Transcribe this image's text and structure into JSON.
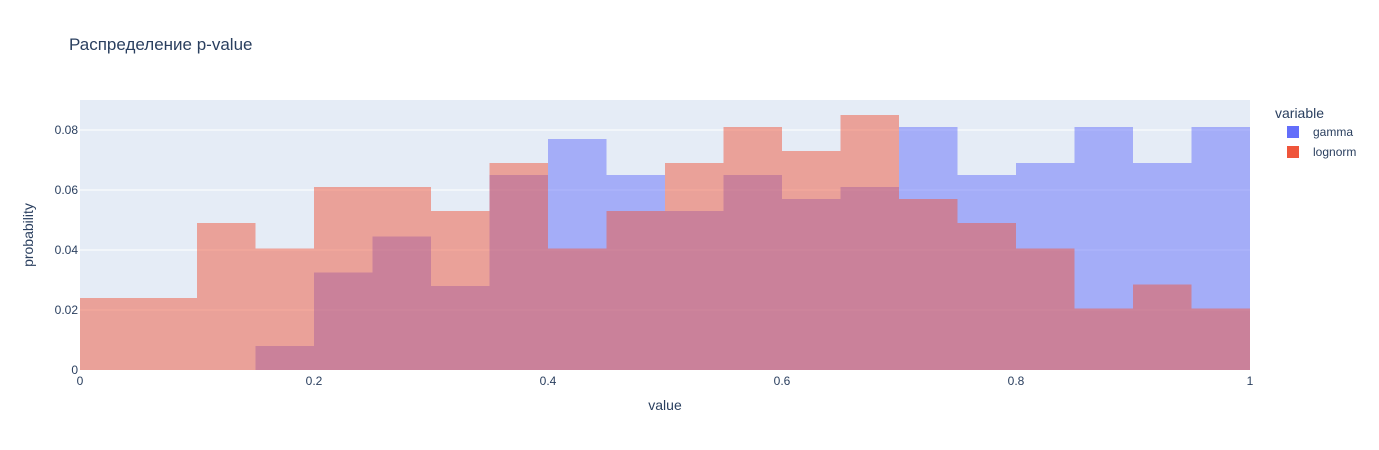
{
  "chart_data": {
    "type": "histogram",
    "title": "Распределение p-value",
    "xlabel": "value",
    "ylabel": "probability",
    "xlim": [
      0,
      1
    ],
    "ylim": [
      0,
      0.09
    ],
    "xticks": [
      0,
      0.2,
      0.4,
      0.6,
      0.8,
      1
    ],
    "xtick_labels": [
      "0",
      "0.2",
      "0.4",
      "0.6",
      "0.8",
      "1"
    ],
    "yticks": [
      0,
      0.02,
      0.04,
      0.06,
      0.08
    ],
    "ytick_labels": [
      "0",
      "0.02",
      "0.04",
      "0.06",
      "0.08"
    ],
    "grid": true,
    "background_color": "#e5ecf6",
    "barmode": "overlay",
    "bin_edges": [
      0,
      0.05,
      0.1,
      0.15,
      0.2,
      0.25,
      0.3,
      0.35,
      0.4,
      0.45,
      0.5,
      0.55,
      0.6,
      0.65,
      0.7,
      0.75,
      0.8,
      0.85,
      0.9,
      0.95,
      1.0
    ],
    "legend": {
      "title": "variable",
      "position": "right"
    },
    "series": [
      {
        "name": "gamma",
        "color": "#636efa",
        "values": [
          0,
          0,
          0,
          0.008,
          0.0325,
          0.0445,
          0.028,
          0.065,
          0.077,
          0.065,
          0.053,
          0.065,
          0.057,
          0.061,
          0.081,
          0.065,
          0.069,
          0.081,
          0.069,
          0.081
        ]
      },
      {
        "name": "lognorm",
        "color": "#ef553b",
        "values": [
          0.024,
          0.024,
          0.049,
          0.0405,
          0.061,
          0.061,
          0.053,
          0.069,
          0.0405,
          0.053,
          0.069,
          0.081,
          0.073,
          0.085,
          0.057,
          0.049,
          0.0405,
          0.0205,
          0.0285,
          0.0205
        ]
      }
    ]
  }
}
